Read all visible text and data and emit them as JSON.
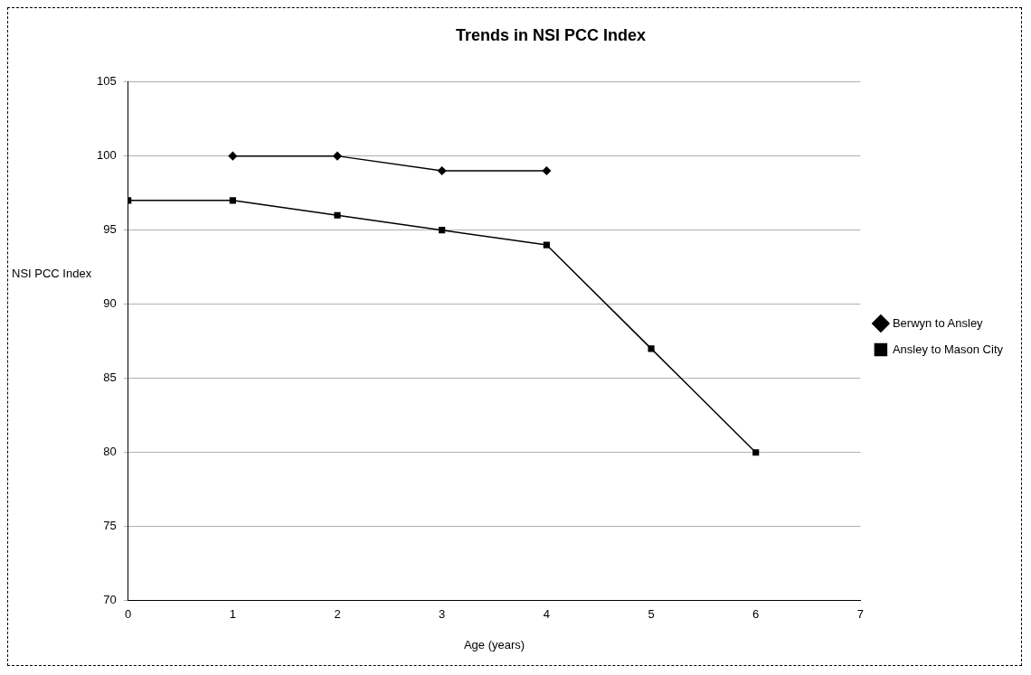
{
  "chart_data": {
    "type": "line",
    "title": "Trends in NSI PCC Index",
    "xlabel": "Age (years)",
    "ylabel": "NSI PCC Index",
    "xlim": [
      0,
      7
    ],
    "xticks": [
      0,
      1,
      2,
      3,
      4,
      5,
      6,
      7
    ],
    "ylim": [
      70,
      105
    ],
    "yticks": [
      70,
      75,
      80,
      85,
      90,
      95,
      100,
      105
    ],
    "grid": "y",
    "legend": "right",
    "series": [
      {
        "name": "Berwyn to Ansley",
        "color": "#000000",
        "x": [
          1,
          2,
          3,
          4
        ],
        "values": [
          100,
          100,
          99,
          99
        ],
        "marker": "diamond",
        "line_style": "solid"
      },
      {
        "name": "Ansley to Mason City",
        "color": "#000000",
        "x": [
          0,
          1,
          2,
          3,
          4,
          5,
          6
        ],
        "values": [
          97,
          97,
          96,
          95,
          94,
          87,
          80
        ],
        "marker": "square",
        "line_style": "solid"
      }
    ]
  }
}
